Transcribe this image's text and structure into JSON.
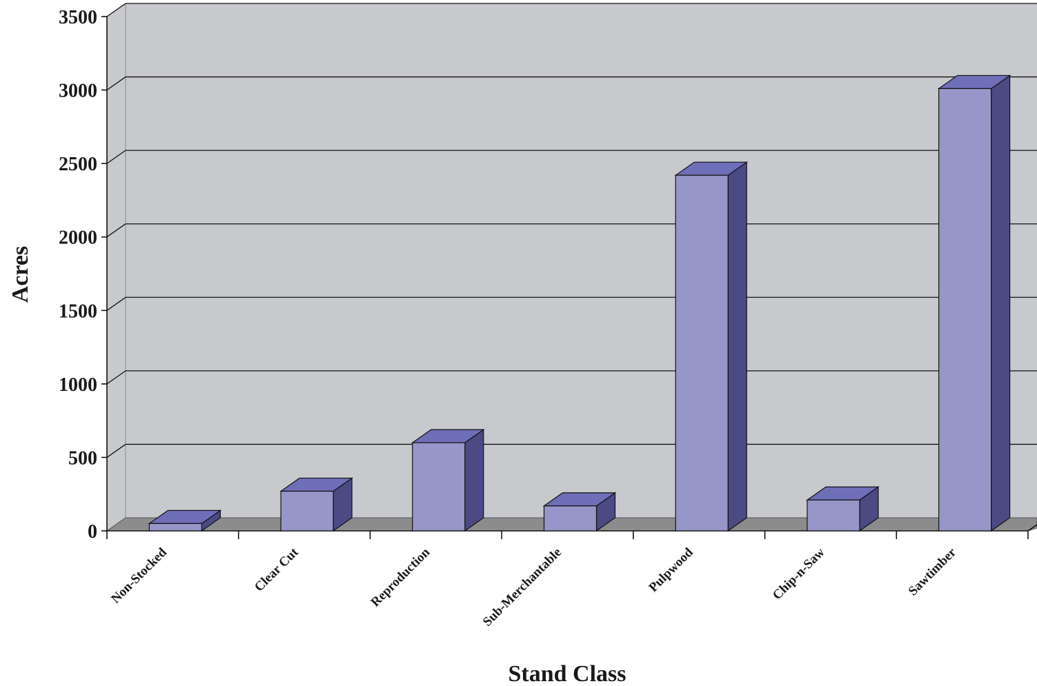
{
  "chart_data": {
    "type": "bar",
    "title": "",
    "xlabel": "Stand Class",
    "ylabel": "Acres",
    "categories": [
      "Non-Stocked",
      "Clear Cut",
      "Reproduction",
      "Sub-Merchantable",
      "Pulpwood",
      "Chip-n-Saw",
      "Sawtimber"
    ],
    "values": [
      50,
      270,
      600,
      170,
      2420,
      210,
      3010
    ],
    "ylim": [
      0,
      3500
    ],
    "yticks": [
      "0",
      "500",
      "1000",
      "1500",
      "2000",
      "2500",
      "3000",
      "3500"
    ],
    "grid": true,
    "style": "3d",
    "colors": {
      "bar_front": "#9696c8",
      "bar_top": "#6e6eb9",
      "bar_side": "#4b4a82",
      "wall": "#c8c9cd",
      "floor": "#8c8c8c",
      "gridline": "#111111"
    }
  }
}
